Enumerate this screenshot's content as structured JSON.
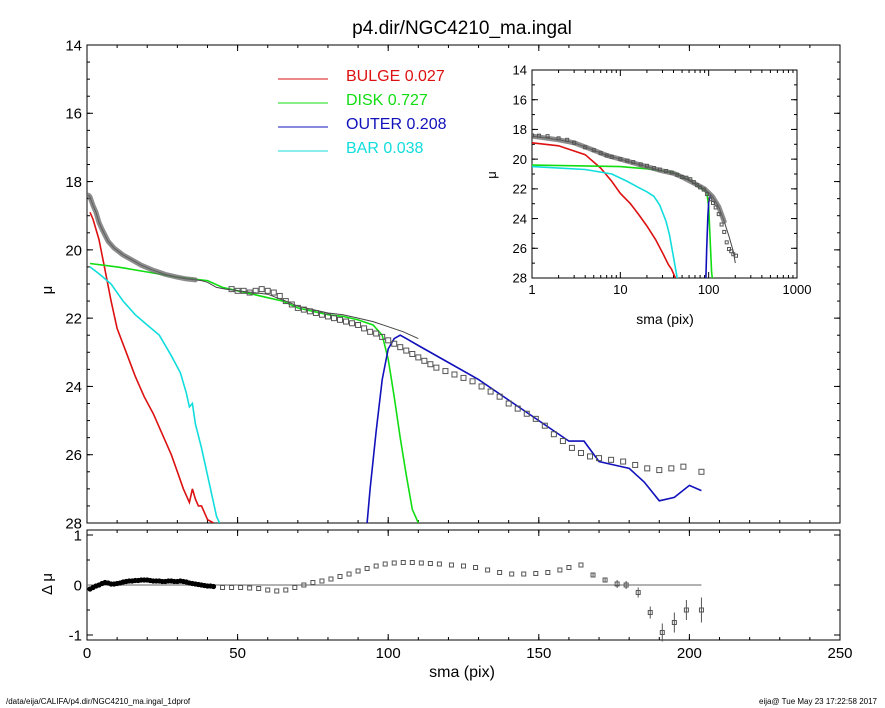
{
  "title": "p4.dir/NGC4210_ma.ingal",
  "footer": {
    "left": "/data/eija/CALIFA/p4.dir/NGC4210_ma.ingal_1dprof",
    "right": "eija@  Tue May 23 17:22:58 2017"
  },
  "colors": {
    "bulge": "#dd1111",
    "disk": "#11dd11",
    "outer": "#1111bb",
    "bar": "#11dddd",
    "total": "#444444",
    "data": "#555555"
  },
  "chart_data": [
    {
      "type": "line",
      "panel": "main",
      "title": "p4.dir/NGC4210_ma.ingal",
      "xlabel": "",
      "ylabel": "μ",
      "xlim": [
        0,
        250
      ],
      "ylim": [
        28,
        14
      ],
      "y_inverted": true,
      "xticks": [
        0,
        50,
        100,
        150,
        200,
        250
      ],
      "yticks": [
        14,
        16,
        18,
        20,
        22,
        24,
        26,
        28
      ],
      "legend_position": "top-center",
      "series": [
        {
          "name": "BULGE",
          "label": "BULGE",
          "value": "0.027",
          "color": "#dd1111",
          "x": [
            1,
            2,
            4,
            6,
            8,
            10,
            13,
            16,
            19,
            22,
            25,
            28,
            30,
            32,
            33,
            34,
            35,
            36,
            37,
            38,
            40,
            42
          ],
          "y": [
            18.9,
            19.1,
            19.7,
            20.6,
            21.5,
            22.3,
            23.0,
            23.7,
            24.3,
            24.8,
            25.4,
            26.0,
            26.5,
            27.0,
            27.2,
            27.4,
            27.0,
            27.3,
            27.5,
            27.5,
            27.9,
            28.0
          ]
        },
        {
          "name": "DISK",
          "label": "DISK",
          "value": "0.727",
          "color": "#11dd11",
          "x": [
            1,
            10,
            20,
            30,
            35,
            40,
            45,
            50,
            55,
            60,
            65,
            70,
            75,
            80,
            85,
            90,
            95,
            98,
            100,
            102,
            104,
            106,
            108,
            110
          ],
          "y": [
            20.4,
            20.5,
            20.65,
            20.8,
            20.85,
            20.9,
            21.1,
            21.2,
            21.3,
            21.4,
            21.5,
            21.7,
            21.8,
            21.9,
            21.95,
            22.05,
            22.2,
            22.5,
            23.2,
            24.3,
            25.5,
            26.6,
            27.6,
            28.0
          ]
        },
        {
          "name": "OUTER",
          "label": "OUTER",
          "value": "0.208",
          "color": "#1111bb",
          "x": [
            93,
            94,
            96,
            98,
            100,
            102,
            104,
            106,
            110,
            120,
            130,
            140,
            150,
            160,
            165,
            170,
            175,
            180,
            185,
            190,
            195,
            200,
            204
          ],
          "y": [
            28.0,
            27.0,
            25.3,
            23.8,
            22.9,
            22.6,
            22.5,
            22.6,
            22.8,
            23.3,
            23.8,
            24.4,
            25.0,
            25.6,
            25.6,
            26.2,
            26.3,
            26.4,
            26.8,
            27.35,
            27.25,
            26.9,
            27.05
          ]
        },
        {
          "name": "BAR",
          "label": "BAR",
          "value": "0.038",
          "color": "#11dddd",
          "x": [
            1,
            4,
            8,
            12,
            16,
            20,
            24,
            28,
            31,
            33,
            34,
            35,
            36,
            38,
            40,
            42,
            43,
            44
          ],
          "y": [
            20.5,
            20.7,
            21.0,
            21.5,
            21.9,
            22.2,
            22.5,
            23.1,
            23.6,
            24.2,
            24.6,
            24.5,
            25.1,
            25.8,
            26.6,
            27.4,
            27.8,
            28.0
          ]
        },
        {
          "name": "",
          "color": "#444444",
          "x": [
            0.5,
            1,
            2,
            3,
            4,
            5,
            7,
            9,
            12,
            15,
            18,
            22,
            26,
            30,
            33,
            36,
            38,
            40,
            43,
            46,
            50,
            55,
            60,
            63,
            66,
            70,
            75,
            80,
            85,
            90,
            95,
            100,
            105,
            110
          ],
          "y": [
            18.4,
            18.45,
            18.7,
            18.9,
            19.2,
            19.4,
            19.75,
            19.95,
            20.15,
            20.3,
            20.45,
            20.6,
            20.72,
            20.8,
            20.85,
            20.88,
            20.9,
            20.95,
            21.1,
            21.15,
            21.2,
            21.25,
            21.3,
            21.4,
            21.5,
            21.65,
            21.75,
            21.85,
            21.9,
            22.0,
            22.1,
            22.25,
            22.4,
            22.6
          ]
        },
        {
          "name": "",
          "style": "points",
          "color": "#555555",
          "x": [
            48,
            50,
            52,
            54,
            56,
            58,
            60,
            62,
            64,
            66,
            68,
            70,
            72,
            74,
            76,
            78,
            80,
            82,
            84,
            86,
            88,
            90,
            92,
            94,
            96,
            98,
            100,
            102,
            104,
            106,
            108,
            110,
            112,
            114,
            116,
            119,
            122,
            125,
            128,
            131,
            134,
            137,
            140,
            143,
            146,
            149,
            152,
            155,
            158,
            161,
            164,
            167,
            170,
            174,
            178,
            182,
            186,
            190,
            194,
            198,
            204
          ],
          "y": [
            21.15,
            21.2,
            21.2,
            21.25,
            21.2,
            21.15,
            21.2,
            21.25,
            21.35,
            21.5,
            21.6,
            21.7,
            21.75,
            21.8,
            21.85,
            21.9,
            21.95,
            22.0,
            22.05,
            22.1,
            22.15,
            22.2,
            22.3,
            22.4,
            22.45,
            22.55,
            22.65,
            22.75,
            22.85,
            22.95,
            23.05,
            23.15,
            23.25,
            23.35,
            23.45,
            23.55,
            23.65,
            23.75,
            23.85,
            24.0,
            24.15,
            24.3,
            24.5,
            24.65,
            24.8,
            24.95,
            25.15,
            25.4,
            25.6,
            25.8,
            25.95,
            26.05,
            26.1,
            26.15,
            26.2,
            26.3,
            26.4,
            26.45,
            26.4,
            26.35,
            26.5
          ]
        }
      ]
    },
    {
      "type": "scatter",
      "panel": "residual",
      "xlabel": "sma (pix)",
      "ylabel": "Δ μ",
      "xlim": [
        0,
        250
      ],
      "ylim": [
        -1.1,
        1.1
      ],
      "xticks": [
        0,
        50,
        100,
        150,
        200,
        250
      ],
      "yticks": [
        -1,
        0,
        1
      ],
      "zero_line_x": [
        0,
        204
      ],
      "series": [
        {
          "name": "",
          "color": "#000000",
          "x": [
            1,
            2,
            3,
            4,
            5,
            6,
            7,
            8,
            9,
            10,
            11,
            12,
            13,
            14,
            15,
            16,
            17,
            18,
            19,
            20,
            21,
            22,
            23,
            24,
            25,
            26,
            27,
            28,
            29,
            30,
            31,
            32,
            33,
            34,
            35,
            36,
            37,
            38,
            39,
            40,
            41,
            42
          ],
          "y": [
            -0.08,
            -0.05,
            -0.02,
            0.0,
            0.03,
            0.05,
            0.04,
            0.02,
            0.02,
            0.03,
            0.04,
            0.06,
            0.07,
            0.08,
            0.08,
            0.09,
            0.09,
            0.1,
            0.1,
            0.1,
            0.09,
            0.08,
            0.08,
            0.08,
            0.07,
            0.07,
            0.08,
            0.08,
            0.07,
            0.07,
            0.08,
            0.07,
            0.06,
            0.04,
            0.03,
            0.02,
            0.01,
            0.0,
            -0.01,
            -0.02,
            -0.02,
            -0.03
          ]
        },
        {
          "name": "",
          "color": "#555555",
          "x": [
            45,
            48,
            51,
            54,
            57,
            60,
            63,
            66,
            69,
            72,
            75,
            78,
            81,
            84,
            87,
            90,
            93,
            96,
            99,
            102,
            105,
            108,
            111,
            114,
            117,
            121,
            125,
            129,
            133,
            137,
            141,
            145,
            149,
            153,
            157,
            160,
            164,
            168,
            172,
            176,
            179,
            183,
            187,
            191,
            195,
            199,
            204
          ],
          "y": [
            -0.05,
            -0.05,
            -0.05,
            -0.06,
            -0.07,
            -0.1,
            -0.12,
            -0.1,
            -0.05,
            0.0,
            0.05,
            0.08,
            0.12,
            0.17,
            0.22,
            0.28,
            0.33,
            0.38,
            0.42,
            0.44,
            0.45,
            0.45,
            0.44,
            0.43,
            0.42,
            0.4,
            0.38,
            0.35,
            0.3,
            0.25,
            0.22,
            0.22,
            0.23,
            0.25,
            0.3,
            0.35,
            0.4,
            0.2,
            0.1,
            0.02,
            0.0,
            -0.15,
            -0.55,
            -0.95,
            -0.75,
            -0.5,
            -0.5
          ],
          "err": [
            0,
            0,
            0,
            0,
            0,
            0,
            0,
            0,
            0,
            0,
            0,
            0,
            0,
            0,
            0,
            0,
            0,
            0,
            0,
            0,
            0,
            0,
            0,
            0,
            0,
            0,
            0,
            0,
            0,
            0,
            0,
            0,
            0,
            0,
            0,
            0,
            0,
            0.05,
            0.05,
            0.08,
            0.08,
            0.1,
            0.12,
            0.18,
            0.2,
            0.2,
            0.25
          ]
        }
      ]
    },
    {
      "type": "line",
      "panel": "inset",
      "xlabel": "sma (pix)",
      "ylabel": "μ",
      "xscale": "log",
      "xlim": [
        1,
        1000
      ],
      "ylim": [
        28,
        14
      ],
      "y_inverted": true,
      "xticks": [
        1,
        10,
        100,
        1000
      ],
      "xticklabels": [
        "1",
        "10",
        "100",
        "1000"
      ],
      "yticks": [
        14,
        16,
        18,
        20,
        22,
        24,
        26,
        28
      ],
      "series": [
        {
          "name": "BULGE",
          "color": "#dd1111",
          "x": [
            1,
            2,
            4,
            6,
            8,
            10,
            13,
            16,
            20,
            25,
            30,
            35,
            38,
            42
          ],
          "y": [
            18.9,
            19.1,
            19.7,
            20.6,
            21.5,
            22.3,
            23.0,
            23.7,
            24.5,
            25.4,
            26.3,
            27.1,
            27.4,
            28.0
          ]
        },
        {
          "name": "DISK",
          "color": "#11dd11",
          "x": [
            1,
            10,
            20,
            40,
            60,
            80,
            95,
            100,
            104,
            108,
            110
          ],
          "y": [
            20.4,
            20.5,
            20.65,
            20.9,
            21.4,
            21.9,
            22.2,
            23.2,
            25.5,
            27.6,
            28.0
          ]
        },
        {
          "name": "OUTER",
          "color": "#1111bb",
          "x": [
            93,
            95,
            98,
            100,
            104,
            106
          ],
          "y": [
            28.0,
            26.0,
            23.8,
            22.9,
            22.5,
            22.6
          ]
        },
        {
          "name": "BAR",
          "color": "#11dddd",
          "x": [
            1,
            4,
            8,
            12,
            16,
            20,
            24,
            28,
            33,
            36,
            40,
            44
          ],
          "y": [
            20.5,
            20.7,
            21.0,
            21.5,
            21.9,
            22.2,
            22.5,
            23.1,
            24.2,
            25.1,
            26.6,
            28.0
          ]
        },
        {
          "name": "",
          "color": "#444444",
          "x": [
            1,
            2,
            3,
            5,
            7,
            10,
            15,
            20,
            30,
            40,
            50,
            70,
            90,
            110,
            130,
            150,
            170,
            190,
            200
          ],
          "y": [
            18.45,
            18.7,
            18.9,
            19.4,
            19.75,
            20.0,
            20.3,
            20.5,
            20.8,
            20.95,
            21.2,
            21.65,
            22.0,
            22.5,
            23.2,
            24.2,
            25.2,
            26.2,
            27.0
          ]
        },
        {
          "name": "",
          "style": "points",
          "color": "#555555",
          "x": [
            1,
            1.2,
            1.5,
            2,
            2.5,
            3,
            4,
            5,
            6,
            7,
            8,
            10,
            12,
            14,
            17,
            20,
            24,
            28,
            33,
            38,
            44,
            50,
            56,
            62,
            68,
            74,
            80,
            88,
            96,
            104,
            112,
            120,
            130,
            140,
            150,
            160,
            170,
            180,
            190,
            204
          ],
          "y": [
            18.4,
            18.42,
            18.45,
            18.6,
            18.7,
            18.9,
            19.2,
            19.4,
            19.6,
            19.75,
            19.85,
            20.0,
            20.1,
            20.2,
            20.35,
            20.45,
            20.6,
            20.7,
            20.8,
            20.9,
            21.05,
            21.2,
            21.25,
            21.35,
            21.55,
            21.75,
            21.9,
            22.05,
            22.35,
            22.7,
            22.95,
            23.25,
            23.7,
            24.4,
            24.9,
            25.6,
            26.05,
            26.2,
            26.4,
            26.5
          ]
        }
      ]
    }
  ]
}
